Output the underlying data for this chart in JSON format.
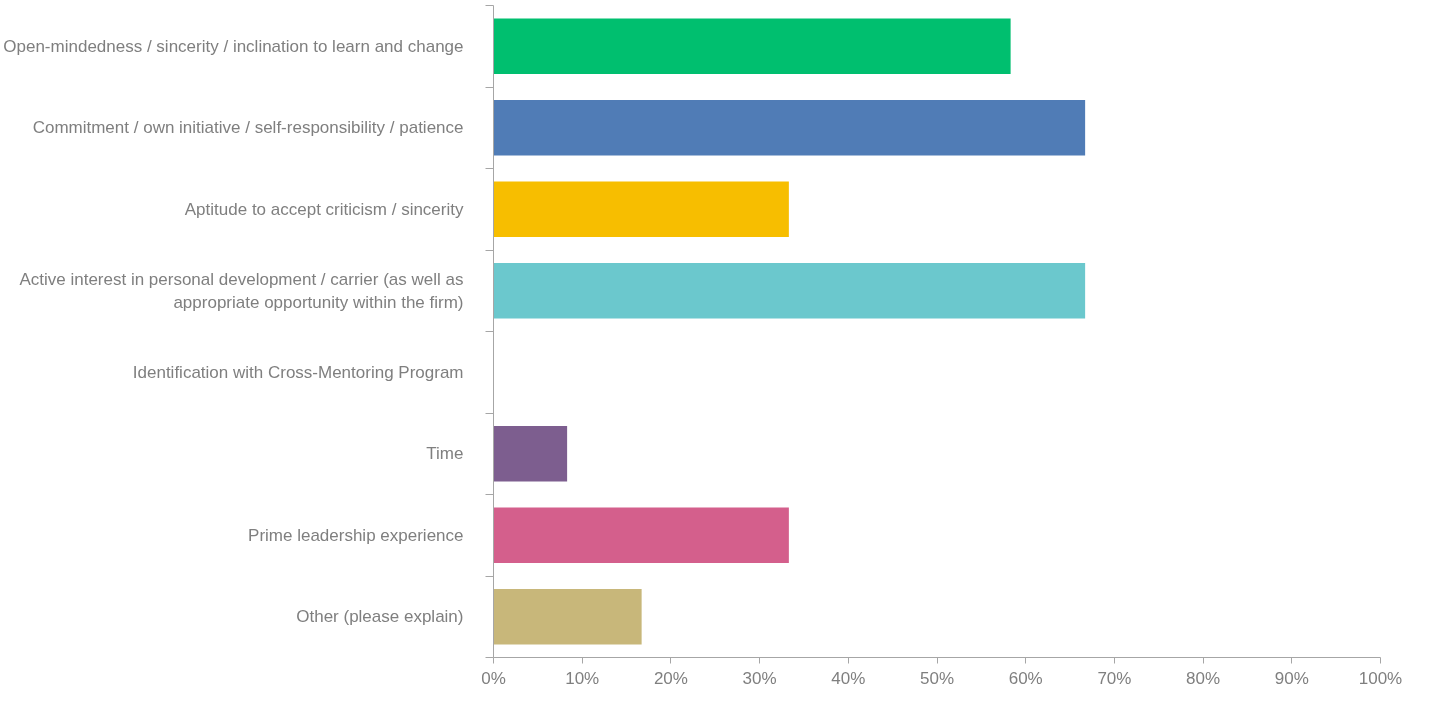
{
  "chart_data": {
    "type": "bar",
    "orientation": "horizontal",
    "categories": [
      "Open-mindedness / sincerity / inclination to learn and change",
      "Commitment / own initiative / self-responsibility / patience",
      "Aptitude to accept criticism / sincerity",
      "Active interest in personal development / carrier (as well as appropriate opportunity within the firm)",
      "Identification with Cross-Mentoring Program",
      "Time",
      "Prime leadership experience",
      "Other (please explain)"
    ],
    "values": [
      58.3,
      66.7,
      33.3,
      66.7,
      0,
      8.3,
      33.3,
      16.7
    ],
    "colors": [
      "#00bf6f",
      "#507cb6",
      "#f7be00",
      "#6bc8cd",
      "#a5a5a5",
      "#7d5e8f",
      "#d45f8c",
      "#c8b77a"
    ],
    "xlim": [
      0,
      100
    ],
    "xticks": [
      {
        "value": 0,
        "label": "0%"
      },
      {
        "value": 10,
        "label": "10%"
      },
      {
        "value": 20,
        "label": "20%"
      },
      {
        "value": 30,
        "label": "30%"
      },
      {
        "value": 40,
        "label": "40%"
      },
      {
        "value": 50,
        "label": "50%"
      },
      {
        "value": 60,
        "label": "60%"
      },
      {
        "value": 70,
        "label": "70%"
      },
      {
        "value": 80,
        "label": "80%"
      },
      {
        "value": 90,
        "label": "90%"
      },
      {
        "value": 100,
        "label": "100%"
      }
    ],
    "grid": false
  }
}
